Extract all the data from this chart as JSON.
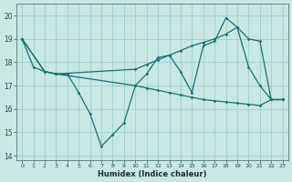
{
  "xlabel": "Humidex (Indice chaleur)",
  "background_color": "#c8e8e4",
  "grid_color": "#9ecece",
  "line_color": "#1a7070",
  "xlim": [
    -0.5,
    23.5
  ],
  "ylim": [
    13.8,
    20.5
  ],
  "yticks": [
    14,
    15,
    16,
    17,
    18,
    19,
    20
  ],
  "xticks": [
    0,
    1,
    2,
    3,
    4,
    5,
    6,
    7,
    8,
    9,
    10,
    11,
    12,
    13,
    14,
    15,
    16,
    17,
    18,
    19,
    20,
    21,
    22,
    23
  ],
  "line1_x": [
    0,
    1,
    2,
    3,
    4,
    5,
    6,
    7,
    8,
    9,
    10,
    11,
    12,
    13,
    14,
    15,
    16,
    17,
    18,
    19,
    20,
    21,
    22,
    23
  ],
  "line1_y": [
    19.0,
    17.8,
    17.6,
    17.5,
    17.5,
    16.7,
    15.8,
    14.4,
    14.9,
    15.4,
    17.0,
    17.5,
    18.2,
    18.3,
    17.6,
    16.7,
    18.7,
    18.9,
    19.9,
    19.5,
    17.8,
    17.0,
    16.4,
    16.4
  ],
  "line2_x": [
    0,
    2,
    3,
    10,
    11,
    12,
    13,
    14,
    15,
    16,
    17,
    18,
    19,
    20,
    21,
    22,
    23
  ],
  "line2_y": [
    19.0,
    17.6,
    17.5,
    17.7,
    17.9,
    18.1,
    18.3,
    18.5,
    18.7,
    18.85,
    19.0,
    19.2,
    19.5,
    19.0,
    18.9,
    16.4,
    16.4
  ],
  "line3_x": [
    0,
    2,
    3,
    10,
    11,
    12,
    13,
    14,
    15,
    16,
    17,
    18,
    19,
    20,
    21,
    22,
    23
  ],
  "line3_y": [
    19.0,
    17.6,
    17.5,
    17.0,
    16.9,
    16.8,
    16.7,
    16.6,
    16.5,
    16.4,
    16.35,
    16.3,
    16.25,
    16.2,
    16.15,
    16.4,
    16.4
  ]
}
